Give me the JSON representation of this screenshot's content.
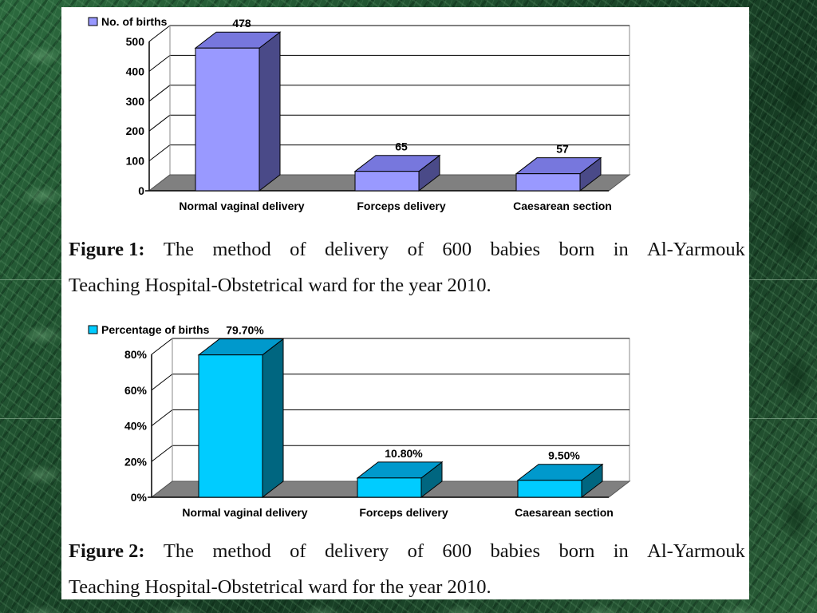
{
  "chart_data": [
    {
      "type": "bar",
      "categories": [
        "Normal vaginal delivery",
        "Forceps delivery",
        "Caesarean section"
      ],
      "series": [
        {
          "name": "No. of births",
          "values": [
            478,
            65,
            57
          ]
        }
      ],
      "data_labels": [
        "478",
        "65",
        "57"
      ],
      "y_ticks": [
        "0",
        "100",
        "200",
        "300",
        "400",
        "500"
      ],
      "ylim": [
        0,
        500
      ],
      "grid": true,
      "legend_position": "top-left",
      "colors": {
        "front": "#9999ff",
        "top": "#7777dd",
        "side": "#4a4a88"
      }
    },
    {
      "type": "bar",
      "categories": [
        "Normal vaginal delivery",
        "Forceps delivery",
        "Caesarean section"
      ],
      "series": [
        {
          "name": "Percentage of births",
          "values": [
            79.7,
            10.8,
            9.5
          ]
        }
      ],
      "data_labels": [
        "79.70%",
        "10.80%",
        "9.50%"
      ],
      "y_ticks": [
        "0%",
        "20%",
        "40%",
        "60%",
        "80%"
      ],
      "ylim": [
        0,
        80
      ],
      "grid": true,
      "legend_position": "top-left",
      "colors": {
        "front": "#00ccff",
        "top": "#0099cc",
        "side": "#006680"
      }
    }
  ],
  "captions": [
    {
      "label": "Figure 1:",
      "words": [
        "The",
        "method",
        "of",
        "delivery",
        "of",
        "600",
        "babies",
        "born",
        "in",
        "Al-Yarmouk"
      ],
      "line2": "Teaching Hospital-Obstetrical ward for the year 2010."
    },
    {
      "label": "Figure 2:",
      "words": [
        "The",
        "method",
        "of",
        "delivery",
        "of",
        "600",
        "babies",
        "born",
        "in",
        "Al-Yarmouk"
      ],
      "line2": "Teaching Hospital-Obstetrical ward for the year 2010."
    }
  ]
}
